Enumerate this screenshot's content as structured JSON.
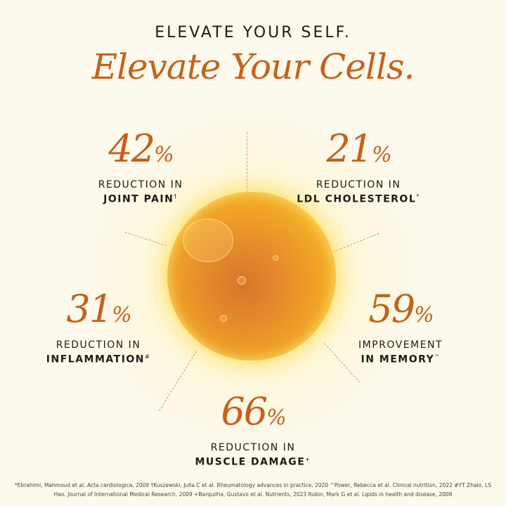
{
  "headline": {
    "top": "ELEVATE YOUR SELF.",
    "bottom": "Elevate Your Cells."
  },
  "accent_color": "#c4621c",
  "center_image": "oil-droplet",
  "stats": [
    {
      "value": "42",
      "unit": "%",
      "line1": "REDUCTION IN",
      "line2": "JOINT PAIN",
      "mark": "†"
    },
    {
      "value": "21",
      "unit": "%",
      "line1": "REDUCTION IN",
      "line2": "LDL CHOLESTEROL",
      "mark": "*"
    },
    {
      "value": "31",
      "unit": "%",
      "line1": "REDUCTION IN",
      "line2": "INFLAMMATION",
      "mark": "#"
    },
    {
      "value": "59",
      "unit": "%",
      "line1": "IMPROVEMENT",
      "line2": "IN MEMORY",
      "mark": "^"
    },
    {
      "value": "66",
      "unit": "%",
      "line1": "REDUCTION IN",
      "line2": "MUSCLE DAMAGE",
      "mark": "+"
    }
  ],
  "footnote": "*Ebrahimi, Mahmoud et al. Acta cardiologica, 2009 †Kuszewski, Julia C et al. Rheumatology advances in practice, 2020 ^Power, Rebecca et al. Clinical nutrition, 2022 #YT Zhalo, LS Hao. Journal of International Medical Research, 2009 +Barquilha, Gustavo et al. Nutrients, 2023 Rubin, Mark G et al. Lipids in health and disease, 2008"
}
